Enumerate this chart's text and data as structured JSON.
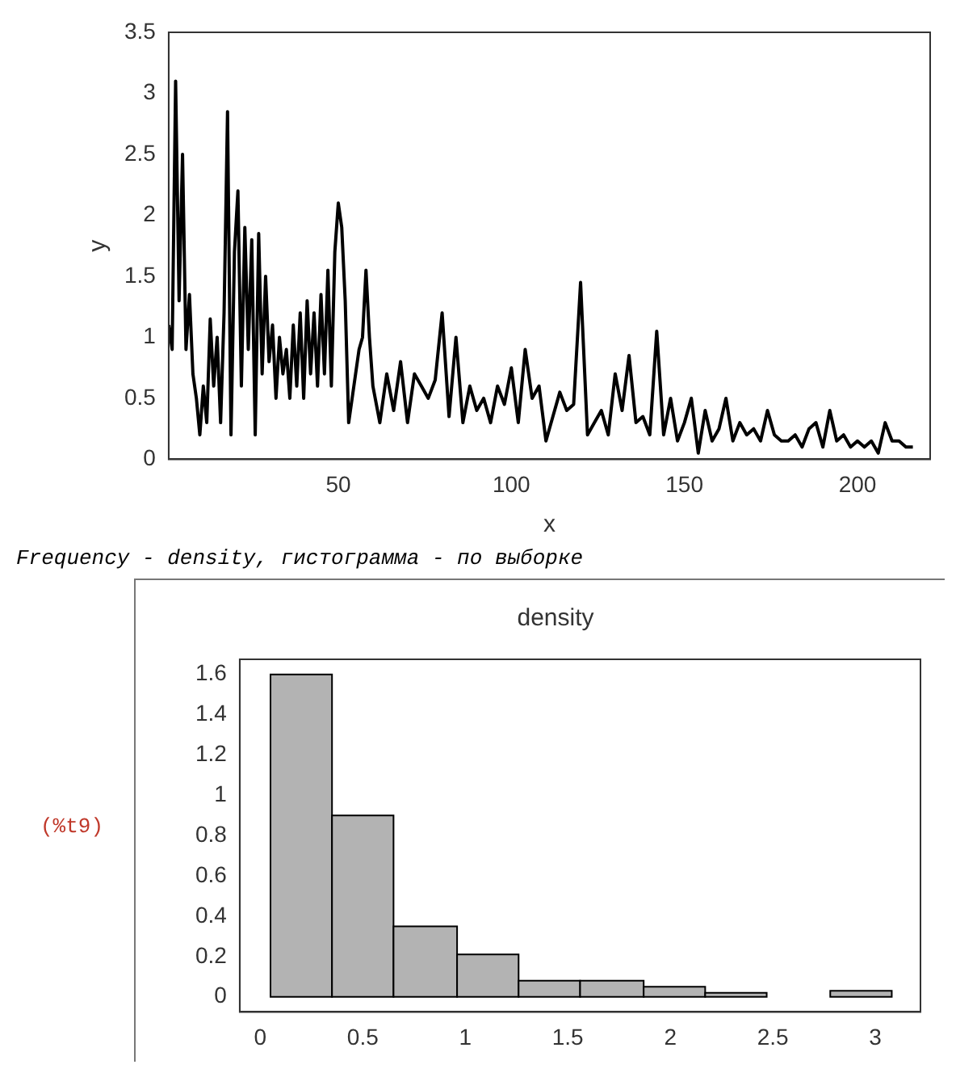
{
  "chart_data": [
    {
      "type": "line",
      "xlabel": "x",
      "ylabel": "y",
      "xlim": [
        1,
        221
      ],
      "ylim": [
        0,
        3.5
      ],
      "xticks": [
        50,
        100,
        150,
        200
      ],
      "yticks": [
        0,
        0.5,
        1,
        1.5,
        2,
        2.5,
        3,
        3.5
      ],
      "grid": false,
      "legend": false,
      "marker": "none",
      "line_style": "solid",
      "series": [
        {
          "color": "#000000",
          "x": [
            1,
            2,
            3,
            4,
            5,
            6,
            7,
            8,
            9,
            10,
            11,
            12,
            13,
            14,
            15,
            16,
            17,
            18,
            19,
            20,
            21,
            22,
            23,
            24,
            25,
            26,
            27,
            28,
            29,
            30,
            31,
            32,
            33,
            34,
            35,
            36,
            37,
            38,
            39,
            40,
            41,
            42,
            43,
            44,
            45,
            46,
            47,
            48,
            49,
            50,
            51,
            52,
            53,
            54,
            55,
            56,
            57,
            58,
            59,
            60,
            62,
            64,
            66,
            68,
            70,
            72,
            74,
            76,
            78,
            80,
            82,
            84,
            86,
            88,
            90,
            92,
            94,
            96,
            98,
            100,
            102,
            104,
            106,
            108,
            110,
            112,
            114,
            116,
            118,
            120,
            122,
            124,
            126,
            128,
            130,
            132,
            134,
            136,
            138,
            140,
            142,
            144,
            146,
            148,
            150,
            152,
            154,
            156,
            158,
            160,
            162,
            164,
            166,
            168,
            170,
            172,
            174,
            176,
            178,
            180,
            182,
            184,
            186,
            188,
            190,
            192,
            194,
            196,
            198,
            200,
            202,
            204,
            206,
            208,
            210,
            212,
            214,
            216
          ],
          "values": [
            1.1,
            0.9,
            3.1,
            1.3,
            2.5,
            0.9,
            1.35,
            0.7,
            0.5,
            0.2,
            0.6,
            0.3,
            1.15,
            0.6,
            1.0,
            0.3,
            1.2,
            2.85,
            0.2,
            1.7,
            2.2,
            0.6,
            1.9,
            0.9,
            1.8,
            0.2,
            1.85,
            0.7,
            1.5,
            0.8,
            1.1,
            0.5,
            1.0,
            0.7,
            0.9,
            0.5,
            1.1,
            0.6,
            1.2,
            0.5,
            1.3,
            0.7,
            1.2,
            0.6,
            1.35,
            0.7,
            1.55,
            0.6,
            1.7,
            2.1,
            1.9,
            1.3,
            0.3,
            0.5,
            0.7,
            0.9,
            1.0,
            1.55,
            1.0,
            0.6,
            0.3,
            0.7,
            0.4,
            0.8,
            0.3,
            0.7,
            0.6,
            0.5,
            0.65,
            1.2,
            0.35,
            1.0,
            0.3,
            0.6,
            0.4,
            0.5,
            0.3,
            0.6,
            0.45,
            0.75,
            0.3,
            0.9,
            0.5,
            0.6,
            0.15,
            0.35,
            0.55,
            0.4,
            0.45,
            1.45,
            0.2,
            0.3,
            0.4,
            0.2,
            0.7,
            0.4,
            0.85,
            0.3,
            0.35,
            0.2,
            1.05,
            0.2,
            0.5,
            0.15,
            0.3,
            0.5,
            0.05,
            0.4,
            0.15,
            0.25,
            0.5,
            0.15,
            0.3,
            0.2,
            0.25,
            0.15,
            0.4,
            0.2,
            0.15,
            0.15,
            0.2,
            0.1,
            0.25,
            0.3,
            0.1,
            0.4,
            0.15,
            0.2,
            0.1,
            0.15,
            0.1,
            0.15,
            0.05,
            0.3,
            0.15,
            0.15,
            0.1,
            0.1
          ]
        }
      ]
    },
    {
      "type": "histogram",
      "title": "density",
      "bins": [
        0.05,
        0.35,
        0.65,
        0.96,
        1.26,
        1.56,
        1.87,
        2.17,
        2.47,
        2.78,
        3.08
      ],
      "values": [
        1.6,
        0.9,
        0.35,
        0.21,
        0.08,
        0.08,
        0.05,
        0.02,
        0,
        0.03
      ],
      "color": "#b3b3b3",
      "xlim": [
        -0.1,
        3.22
      ],
      "ylim": [
        -0.075,
        1.675
      ],
      "xticks": [
        0,
        0.5,
        1,
        1.5,
        2,
        2.5,
        3
      ],
      "yticks": [
        0,
        0.2,
        0.4,
        0.6,
        0.8,
        1,
        1.2,
        1.4,
        1.6
      ],
      "grid": false,
      "legend": false,
      "annotations": [
        "Frequency - density, гистограмма - по выборке",
        "(%t9)"
      ]
    }
  ]
}
